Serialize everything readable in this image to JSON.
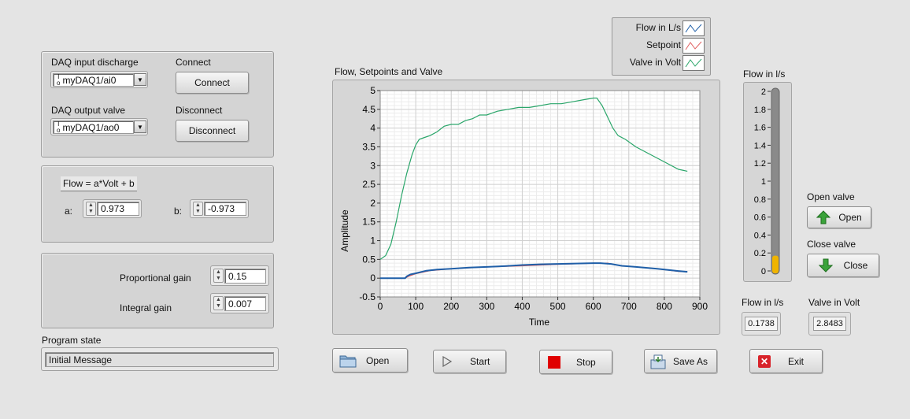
{
  "daq_panel": {
    "input_label": "DAQ input discharge",
    "input_value": "myDAQ1/ai0",
    "output_label": "DAQ output valve",
    "output_value": "myDAQ1/ao0",
    "connect_label": "Connect",
    "connect_button": "Connect",
    "disconnect_label": "Disconnect",
    "disconnect_button": "Disconnect",
    "io_icon": "I/O-icon"
  },
  "calibration_panel": {
    "formula": "Flow = a*Volt + b",
    "a_label": "a:",
    "a_value": "0.973",
    "b_label": "b:",
    "b_value": "-0.973"
  },
  "gains_panel": {
    "proportional_label": "Proportional gain",
    "proportional_value": "0.15",
    "integral_label": "Integral gain",
    "integral_value": "0.007"
  },
  "program_state": {
    "label": "Program state",
    "value": "Initial Message"
  },
  "legend": {
    "items": [
      {
        "name": "Flow in L/s",
        "color": "#1f5fa8"
      },
      {
        "name": "Setpoint",
        "color": "#e06060"
      },
      {
        "name": "Valve in Volt",
        "color": "#2aa66a"
      }
    ]
  },
  "chart_data": {
    "type": "line",
    "title": "Flow, Setpoints and Valve",
    "xlabel": "Time",
    "ylabel": "Amplitude",
    "xlim": [
      0,
      900
    ],
    "ylim": [
      -0.5,
      5
    ],
    "xticks": [
      "0",
      "100",
      "200",
      "300",
      "400",
      "500",
      "600",
      "700",
      "800",
      "900"
    ],
    "yticks": [
      "-0.5",
      "0",
      "0.5",
      "1",
      "1.5",
      "2",
      "2.5",
      "3",
      "3.5",
      "4",
      "4.5",
      "5"
    ],
    "grid": true,
    "series": [
      {
        "name": "Valve in Volt",
        "color": "#2aa66a",
        "x": [
          0,
          15,
          30,
          45,
          60,
          75,
          90,
          100,
          110,
          125,
          140,
          160,
          180,
          200,
          220,
          240,
          260,
          280,
          300,
          330,
          360,
          390,
          420,
          450,
          480,
          510,
          540,
          570,
          600,
          610,
          625,
          640,
          655,
          670,
          690,
          720,
          760,
          800,
          840,
          865
        ],
        "y": [
          0.5,
          0.6,
          0.9,
          1.5,
          2.2,
          2.8,
          3.3,
          3.55,
          3.7,
          3.75,
          3.8,
          3.9,
          4.05,
          4.1,
          4.1,
          4.2,
          4.25,
          4.35,
          4.35,
          4.45,
          4.5,
          4.55,
          4.55,
          4.6,
          4.65,
          4.65,
          4.7,
          4.75,
          4.8,
          4.8,
          4.6,
          4.3,
          4.0,
          3.8,
          3.7,
          3.5,
          3.3,
          3.1,
          2.9,
          2.85
        ]
      },
      {
        "name": "Setpoint",
        "color": "#e06060",
        "x": [
          0,
          70,
          80,
          100,
          140,
          200,
          300,
          400,
          500,
          600,
          640,
          680,
          720,
          780,
          840,
          865
        ],
        "y": [
          0,
          0,
          0.05,
          0.12,
          0.2,
          0.25,
          0.3,
          0.33,
          0.37,
          0.4,
          0.4,
          0.33,
          0.3,
          0.25,
          0.18,
          0.17
        ]
      },
      {
        "name": "Flow in L/s",
        "color": "#1f5fa8",
        "x": [
          0,
          70,
          75,
          85,
          100,
          130,
          160,
          200,
          250,
          300,
          350,
          400,
          450,
          500,
          550,
          600,
          620,
          650,
          680,
          720,
          780,
          840,
          865
        ],
        "y": [
          0,
          0,
          0.05,
          0.1,
          0.13,
          0.2,
          0.23,
          0.25,
          0.28,
          0.3,
          0.32,
          0.35,
          0.37,
          0.38,
          0.39,
          0.4,
          0.4,
          0.38,
          0.33,
          0.3,
          0.25,
          0.19,
          0.17
        ]
      }
    ]
  },
  "buttons": {
    "open": "Open",
    "start": "Start",
    "stop": "Stop",
    "save_as": "Save As",
    "exit": "Exit"
  },
  "flow_meter": {
    "title": "Flow in l/s",
    "ticks": [
      "2",
      "1.8",
      "1.6",
      "1.4",
      "1.2",
      "1",
      "0.8",
      "0.6",
      "0.4",
      "0.2",
      "0"
    ],
    "min": 0,
    "max": 2,
    "value": 0.17,
    "fill_color": "#f0b400"
  },
  "valve_controls": {
    "open_label": "Open valve",
    "open_button": "Open",
    "close_label": "Close valve",
    "close_button": "Close"
  },
  "readouts": {
    "flow_label": "Flow in l/s",
    "flow_value": "0.1738",
    "valve_label": "Valve in Volt",
    "valve_value": "2.8483"
  }
}
